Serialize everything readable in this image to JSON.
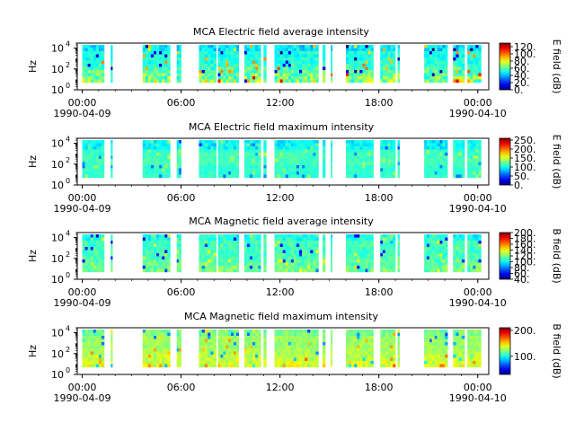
{
  "chart_data": [
    {
      "type": "heatmap",
      "title": "MCA  Electric field average intensity",
      "ylabel": "Hz",
      "y_scale": "log",
      "ylim": [
        1,
        30000
      ],
      "y_ticks": [
        {
          "v": 1,
          "b": "10",
          "e": "0"
        },
        {
          "v": 100,
          "b": "10",
          "e": "2"
        },
        {
          "v": 10000,
          "b": "10",
          "e": "4"
        }
      ],
      "xlim": [
        "1990-04-08T23:42",
        "1990-04-10T00:40"
      ],
      "x_ticks": [
        {
          "t": "1990-04-09T00:00",
          "l1": "00:00",
          "l2": "1990-04-09"
        },
        {
          "t": "1990-04-09T06:00",
          "l1": "06:00",
          "l2": ""
        },
        {
          "t": "1990-04-09T12:00",
          "l1": "12:00",
          "l2": ""
        },
        {
          "t": "1990-04-09T18:00",
          "l1": "18:00",
          "l2": ""
        },
        {
          "t": "1990-04-10T00:00",
          "l1": "00:00",
          "l2": "1990-04-10"
        }
      ],
      "data_freq_range": [
        5,
        20000
      ],
      "colorbar": {
        "label": "E field (dB)",
        "range": [
          0,
          130
        ],
        "ticks": [
          0,
          20,
          40,
          60,
          80,
          100,
          120
        ],
        "tick_labels": [
          "0.",
          "20.",
          "40.",
          "60.",
          "80.",
          "100.",
          "120."
        ]
      },
      "colormap": "jet",
      "background_level": 52,
      "bright_level": 80,
      "bright_band": "low"
    },
    {
      "type": "heatmap",
      "title": "MCA  Electric field maximum intensity",
      "ylabel": "Hz",
      "y_scale": "log",
      "ylim": [
        1,
        30000
      ],
      "y_ticks": [
        {
          "v": 1,
          "b": "10",
          "e": "0"
        },
        {
          "v": 100,
          "b": "10",
          "e": "2"
        },
        {
          "v": 10000,
          "b": "10",
          "e": "4"
        }
      ],
      "xlim": [
        "1990-04-08T23:42",
        "1990-04-10T00:40"
      ],
      "x_ticks": [
        {
          "t": "1990-04-09T00:00",
          "l1": "00:00",
          "l2": "1990-04-09"
        },
        {
          "t": "1990-04-09T06:00",
          "l1": "06:00",
          "l2": ""
        },
        {
          "t": "1990-04-09T12:00",
          "l1": "12:00",
          "l2": ""
        },
        {
          "t": "1990-04-09T18:00",
          "l1": "18:00",
          "l2": ""
        },
        {
          "t": "1990-04-10T00:00",
          "l1": "00:00",
          "l2": "1990-04-10"
        }
      ],
      "data_freq_range": [
        5,
        20000
      ],
      "colorbar": {
        "label": "E field (dB)",
        "range": [
          0,
          260
        ],
        "ticks": [
          0,
          50,
          100,
          150,
          200,
          250
        ],
        "tick_labels": [
          "0.",
          "50.",
          "100.",
          "150.",
          "200.",
          "250."
        ]
      },
      "colormap": "jet",
      "background_level": 110,
      "bright_level": 130,
      "bright_band": "mid"
    },
    {
      "type": "heatmap",
      "title": "MCA  Magnetic field average intensity",
      "ylabel": "Hz",
      "y_scale": "log",
      "ylim": [
        1,
        30000
      ],
      "y_ticks": [
        {
          "v": 1,
          "b": "10",
          "e": "0"
        },
        {
          "v": 100,
          "b": "10",
          "e": "2"
        },
        {
          "v": 10000,
          "b": "10",
          "e": "4"
        }
      ],
      "xlim": [
        "1990-04-08T23:42",
        "1990-04-10T00:40"
      ],
      "x_ticks": [
        {
          "t": "1990-04-09T00:00",
          "l1": "00:00",
          "l2": "1990-04-09"
        },
        {
          "t": "1990-04-09T06:00",
          "l1": "06:00",
          "l2": ""
        },
        {
          "t": "1990-04-09T12:00",
          "l1": "12:00",
          "l2": ""
        },
        {
          "t": "1990-04-09T18:00",
          "l1": "18:00",
          "l2": ""
        },
        {
          "t": "1990-04-10T00:00",
          "l1": "00:00",
          "l2": "1990-04-10"
        }
      ],
      "data_freq_range": [
        5,
        20000
      ],
      "colorbar": {
        "label": "B field (dB)",
        "range": [
          40,
          200
        ],
        "ticks": [
          40,
          60,
          80,
          100,
          120,
          140,
          160,
          180,
          200
        ],
        "tick_labels": [
          "40.",
          "60.",
          "80.",
          "100.",
          "120.",
          "140.",
          "160.",
          "180.",
          "200."
        ]
      },
      "colormap": "jet",
      "background_level": 110,
      "bright_level": 125,
      "bright_band": "low"
    },
    {
      "type": "heatmap",
      "title": "MCA  Magnetic field maximum intensity",
      "ylabel": "Hz",
      "y_scale": "log",
      "ylim": [
        1,
        30000
      ],
      "y_ticks": [
        {
          "v": 1,
          "b": "10",
          "e": "0"
        },
        {
          "v": 100,
          "b": "10",
          "e": "2"
        },
        {
          "v": 10000,
          "b": "10",
          "e": "4"
        }
      ],
      "xlim": [
        "1990-04-08T23:42",
        "1990-04-10T00:40"
      ],
      "x_ticks": [
        {
          "t": "1990-04-09T00:00",
          "l1": "00:00",
          "l2": "1990-04-09"
        },
        {
          "t": "1990-04-09T06:00",
          "l1": "06:00",
          "l2": ""
        },
        {
          "t": "1990-04-09T12:00",
          "l1": "12:00",
          "l2": ""
        },
        {
          "t": "1990-04-09T18:00",
          "l1": "18:00",
          "l2": ""
        },
        {
          "t": "1990-04-10T00:00",
          "l1": "00:00",
          "l2": "1990-04-10"
        }
      ],
      "data_freq_range": [
        5,
        20000
      ],
      "colorbar": {
        "label": "B field (dB)",
        "range": [
          30,
          210
        ],
        "ticks": [
          100,
          200
        ],
        "tick_labels": [
          "100.",
          "200."
        ]
      },
      "colormap": "jet",
      "background_level": 125,
      "bright_level": 145,
      "bright_band": "low"
    }
  ],
  "data_segments": [
    [
      "1990-04-09T00:00",
      "1990-04-09T01:20"
    ],
    [
      "1990-04-09T01:44",
      "1990-04-09T01:50"
    ],
    [
      "1990-04-09T03:40",
      "1990-04-09T05:20"
    ],
    [
      "1990-04-09T05:44",
      "1990-04-09T06:00"
    ],
    [
      "1990-04-09T07:05",
      "1990-04-09T08:08"
    ],
    [
      "1990-04-09T08:14",
      "1990-04-09T09:30"
    ],
    [
      "1990-04-09T09:50",
      "1990-04-09T10:50"
    ],
    [
      "1990-04-09T11:00",
      "1990-04-09T11:10"
    ],
    [
      "1990-04-09T11:40",
      "1990-04-09T14:20"
    ],
    [
      "1990-04-09T14:35",
      "1990-04-09T14:45"
    ],
    [
      "1990-04-09T15:05",
      "1990-04-09T15:10"
    ],
    [
      "1990-04-09T16:00",
      "1990-04-09T17:40"
    ],
    [
      "1990-04-09T18:05",
      "1990-04-09T19:00"
    ],
    [
      "1990-04-09T19:08",
      "1990-04-09T19:15"
    ],
    [
      "1990-04-09T20:45",
      "1990-04-09T22:10"
    ],
    [
      "1990-04-09T22:30",
      "1990-04-09T23:12"
    ],
    [
      "1990-04-09T23:22",
      "1990-04-10T00:12"
    ]
  ]
}
